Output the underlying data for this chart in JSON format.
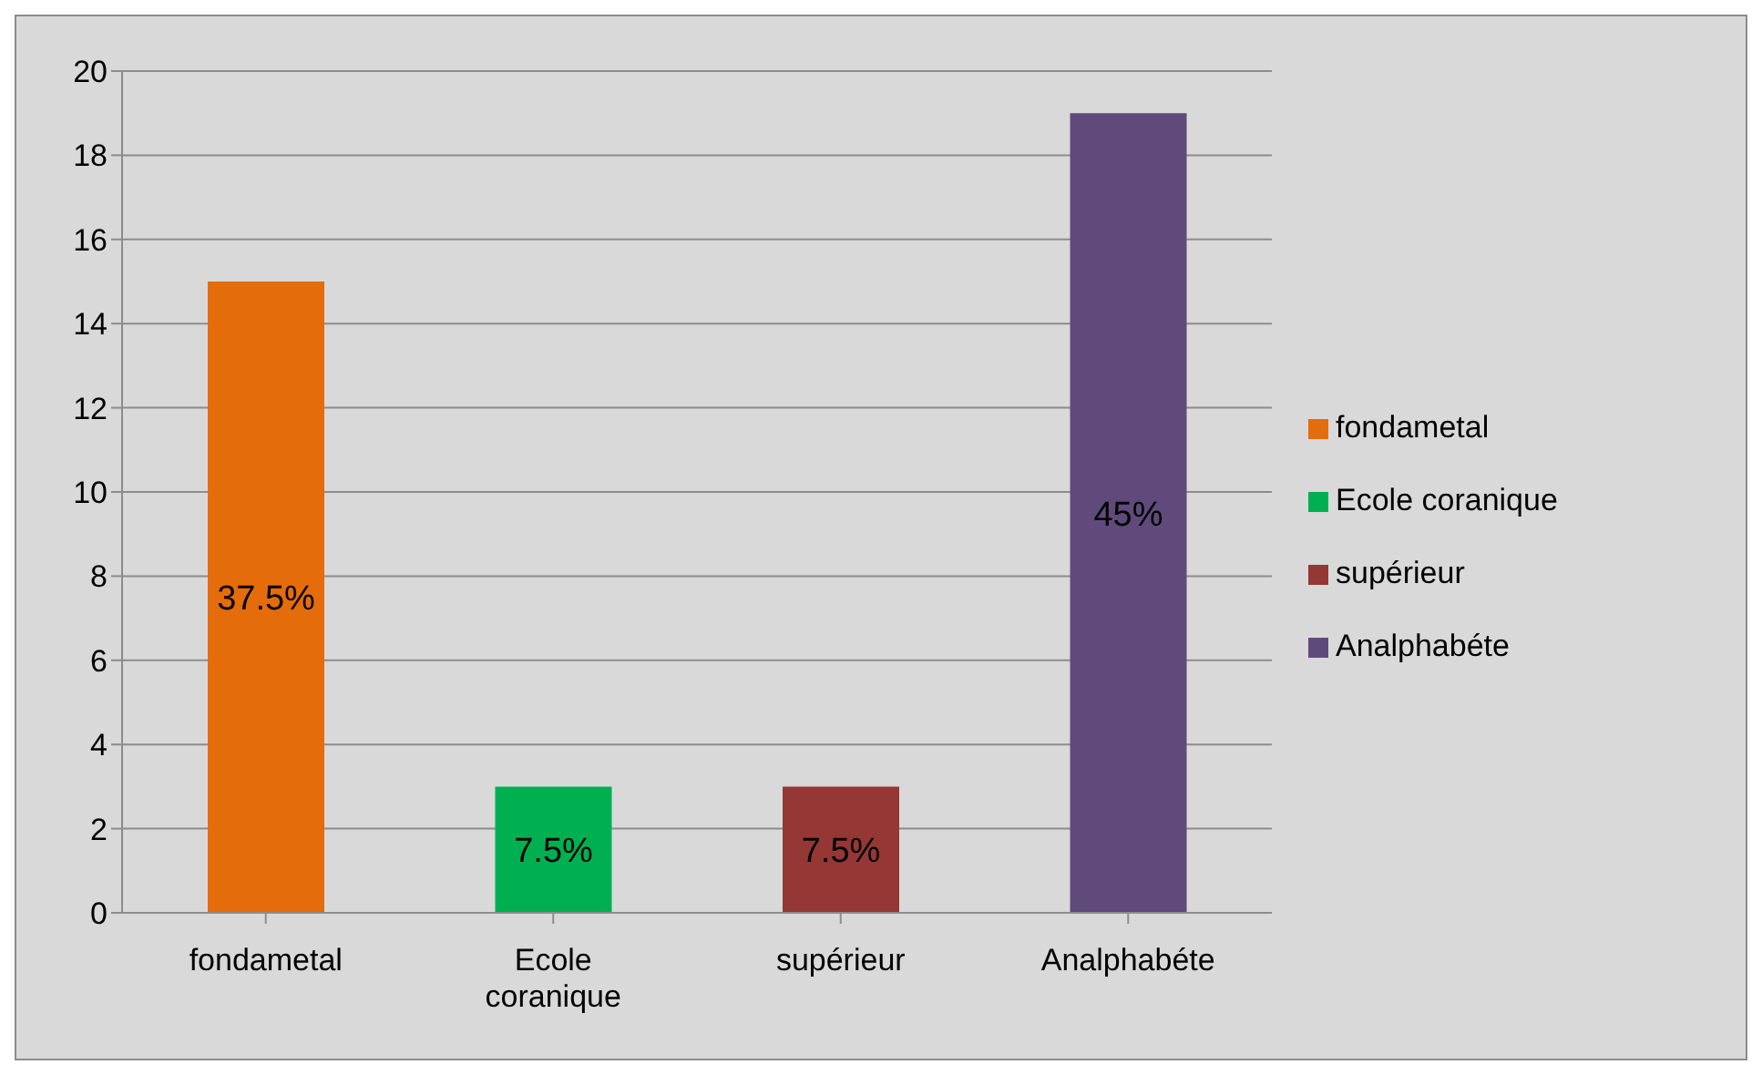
{
  "chart_data": {
    "type": "bar",
    "categories": [
      "fondametal",
      "Ecole coranique",
      "supérieur",
      "Analphabéte"
    ],
    "series": [
      {
        "name": "fondametal",
        "color": "#e46c0a",
        "values": [
          15,
          null,
          null,
          null
        ]
      },
      {
        "name": "Ecole coranique",
        "color": "#00b050",
        "values": [
          null,
          3,
          null,
          null
        ]
      },
      {
        "name": "supérieur",
        "color": "#953735",
        "values": [
          null,
          null,
          3,
          null
        ]
      },
      {
        "name": "Analphabéte",
        "color": "#604a7b",
        "values": [
          null,
          null,
          null,
          19
        ]
      }
    ],
    "annotations": [
      "37.5%",
      "7.5%",
      "7.5%",
      "45%"
    ],
    "ylim": [
      0,
      20
    ],
    "yticks": [
      0,
      2,
      4,
      6,
      8,
      10,
      12,
      14,
      16,
      18,
      20
    ],
    "grid": "y",
    "legend": "right"
  }
}
